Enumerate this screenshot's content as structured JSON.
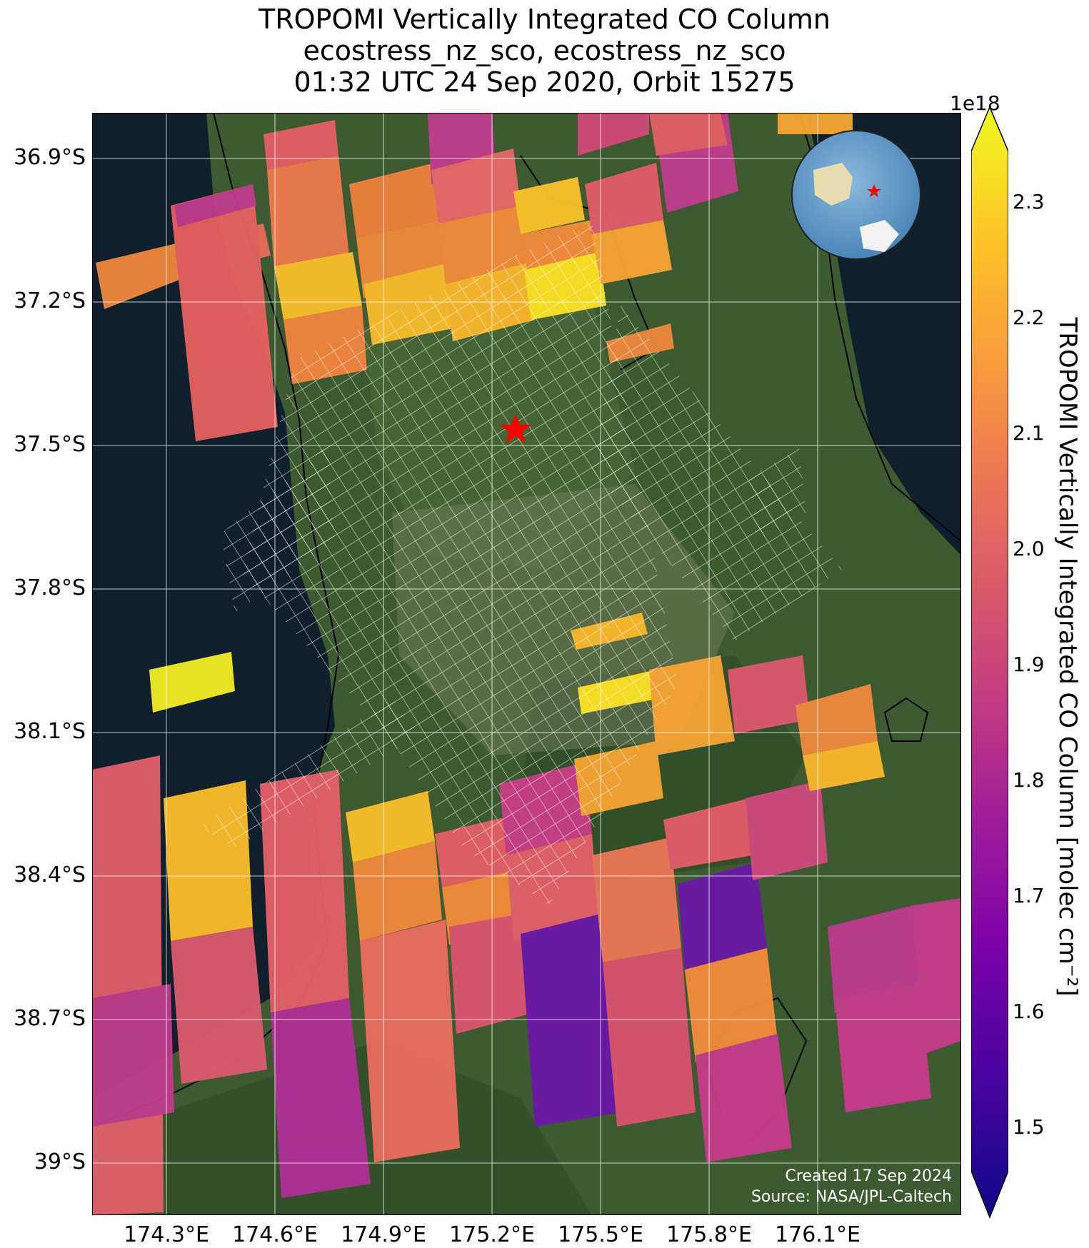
{
  "title": {
    "line1": "TROPOMI Vertically Integrated CO Column",
    "line2": "ecostress_nz_sco, ecostress_nz_sco",
    "line3": "01:32 UTC 24 Sep 2020, Orbit 15275"
  },
  "map": {
    "lat_ticks": [
      "36.9°S",
      "37.2°S",
      "37.5°S",
      "37.8°S",
      "38.1°S",
      "38.4°S",
      "38.7°S",
      "39°S"
    ],
    "lon_ticks": [
      "174.3°E",
      "174.6°E",
      "174.9°E",
      "175.2°E",
      "175.5°E",
      "175.8°E",
      "176.1°E"
    ],
    "marker": "red-star",
    "inset": "globe-locator",
    "credit_line1": "Created 17 Sep 2024",
    "credit_line2": "Source: NASA/JPL-Caltech",
    "colors": {
      "ocean": "#0f1f2b",
      "land": "#3e5a30",
      "marker": "#ff0000",
      "grid": "#ffffff"
    }
  },
  "colorbar": {
    "exponent": "1e18",
    "label": "TROPOMI Vertically Integrated CO Column [molec cm⁻²]",
    "ticks": [
      "1.5",
      "1.6",
      "1.7",
      "1.8",
      "1.9",
      "2.0",
      "2.1",
      "2.2",
      "2.3"
    ],
    "colormap": "plasma",
    "range": [
      1.45,
      2.35
    ],
    "extend": "both"
  }
}
